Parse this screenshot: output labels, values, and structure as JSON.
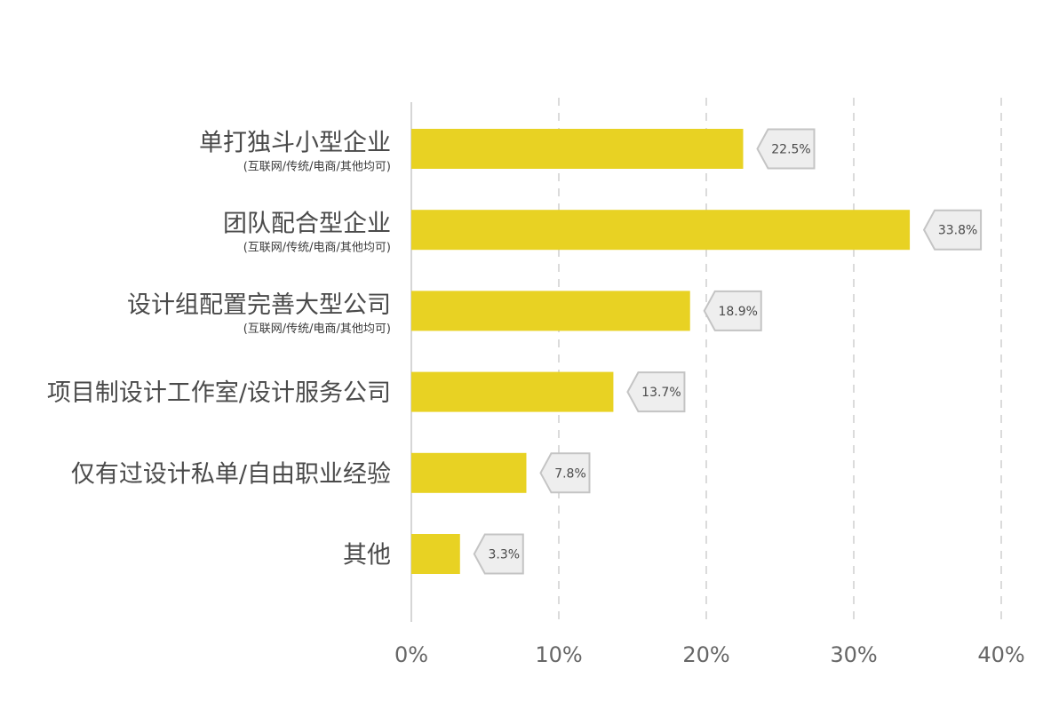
{
  "chart_data": {
    "type": "bar",
    "orientation": "horizontal",
    "categories": [
      "单打独斗小型企业",
      "团队配合型企业",
      "设计组配置完善大型公司",
      "项目制设计工作室/设计服务公司",
      "仅有过设计私单/自由职业经验",
      "其他"
    ],
    "category_notes": [
      "(互联网/传统/电商/其他均可)",
      "(互联网/传统/电商/其他均可)",
      "(互联网/传统/电商/其他均可)",
      "",
      "",
      ""
    ],
    "values": [
      22.5,
      33.8,
      18.9,
      13.7,
      7.8,
      3.3
    ],
    "data_labels": [
      "22.5%",
      "33.8%",
      "18.9%",
      "13.7%",
      "7.8%",
      "3.3%"
    ],
    "xlim": [
      0,
      40
    ],
    "x_ticks": [
      0,
      10,
      20,
      30,
      40
    ],
    "x_tick_labels": [
      "0%",
      "10%",
      "20%",
      "30%",
      "40%"
    ],
    "grid": "vertical dashed",
    "colors": {
      "bar": "#e8d223",
      "label_box_fill": "#eeeeee",
      "label_box_stroke": "#c4c4c4",
      "grid": "#cfcfcf",
      "axis": "#c8c8c8"
    }
  }
}
